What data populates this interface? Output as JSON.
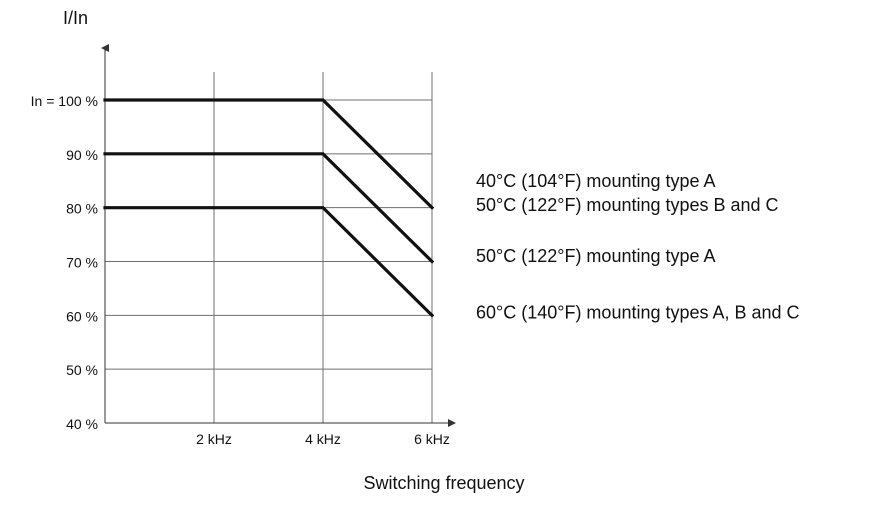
{
  "chart_data": {
    "type": "line",
    "title": "",
    "ylabel": "I/In",
    "xlabel": "Switching frequency",
    "x_ticks": [
      {
        "value": 0,
        "label": ""
      },
      {
        "value": 2,
        "label": "2 kHz"
      },
      {
        "value": 4,
        "label": "4 kHz"
      },
      {
        "value": 6,
        "label": "6 kHz"
      }
    ],
    "y_ticks": [
      {
        "value": 40,
        "label": "40 %"
      },
      {
        "value": 50,
        "label": "50 %"
      },
      {
        "value": 60,
        "label": "60 %"
      },
      {
        "value": 70,
        "label": "70 %"
      },
      {
        "value": 80,
        "label": "80 %"
      },
      {
        "value": 90,
        "label": "90 %"
      },
      {
        "value": 100,
        "label": "In = 100 %"
      }
    ],
    "xlim": [
      0,
      6
    ],
    "ylim": [
      40,
      100
    ],
    "grid": true,
    "series": [
      {
        "x": [
          0,
          4,
          6
        ],
        "y": [
          100,
          100,
          80
        ]
      },
      {
        "x": [
          0,
          4,
          6
        ],
        "y": [
          90,
          90,
          70
        ]
      },
      {
        "x": [
          0,
          4,
          6
        ],
        "y": [
          80,
          80,
          60
        ]
      }
    ],
    "annotations": [
      {
        "text": "40°C (104°F) mounting type A",
        "x": 6,
        "y": 85
      },
      {
        "text": "50°C (122°F) mounting types B and C",
        "x": 6,
        "y": 80.5
      },
      {
        "text": "50°C (122°F) mounting type A",
        "x": 6,
        "y": 71
      },
      {
        "text": "60°C (140°F) mounting types A, B and C",
        "x": 6,
        "y": 60.5
      }
    ],
    "colors": {
      "series": "#111111",
      "grid": "#6f6f6f",
      "axis": "#333333",
      "text": "#111111"
    }
  }
}
